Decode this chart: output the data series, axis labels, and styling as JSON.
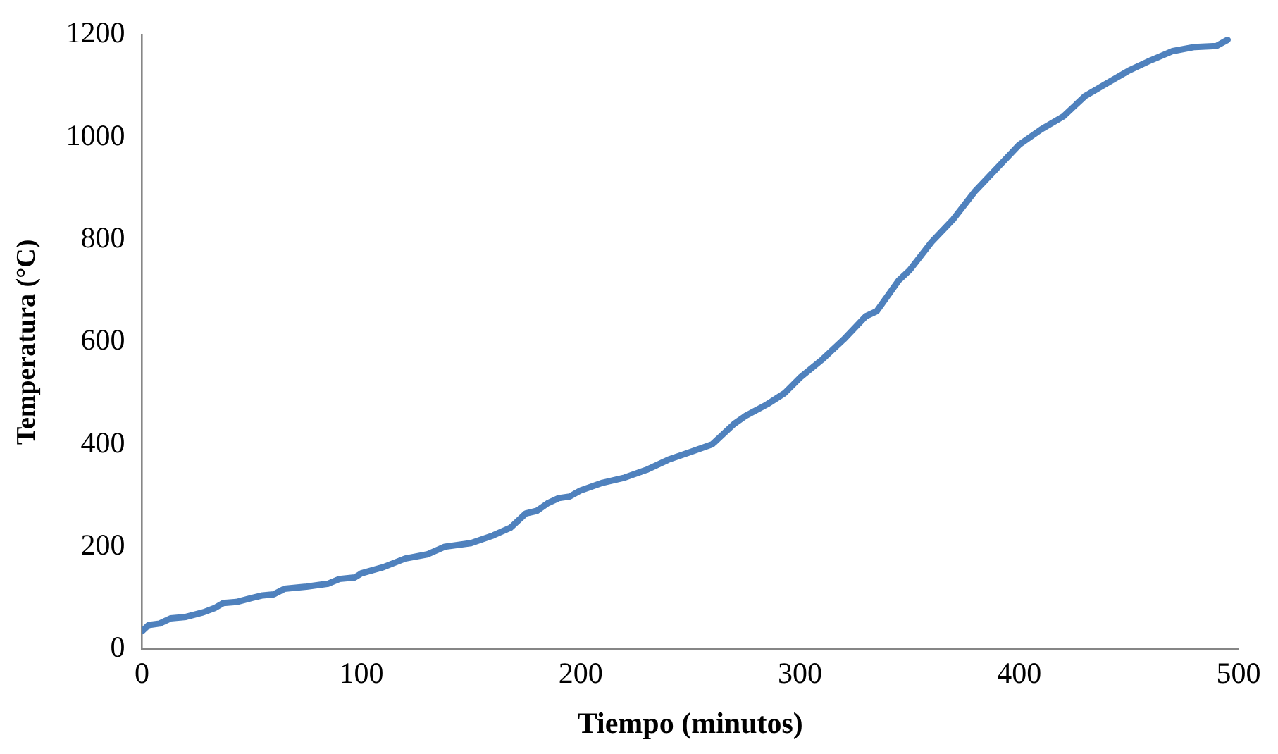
{
  "chart_data": {
    "type": "line",
    "xlabel": "Tiempo (minutos)",
    "ylabel": "Temperatura (°C)",
    "xlim": [
      0,
      500
    ],
    "xticks": [
      0,
      100,
      200,
      300,
      400,
      500
    ],
    "ylim": [
      0,
      1200
    ],
    "yticks": [
      0,
      200,
      400,
      600,
      800,
      1000,
      1200
    ],
    "grid": false,
    "legend": false,
    "marker": "none",
    "line_style": "solid",
    "series": [
      {
        "color": "#4f81bd",
        "x": [
          0,
          3,
          8,
          13,
          20,
          28,
          33,
          37,
          43,
          50,
          55,
          60,
          65,
          75,
          85,
          90,
          97,
          100,
          110,
          120,
          130,
          138,
          150,
          160,
          168,
          175,
          180,
          185,
          190,
          195,
          200,
          210,
          220,
          230,
          240,
          250,
          260,
          265,
          270,
          275,
          285,
          293,
          300,
          310,
          320,
          330,
          335,
          345,
          350,
          360,
          370,
          380,
          390,
          400,
          410,
          420,
          430,
          440,
          450,
          460,
          470,
          480,
          490,
          495
        ],
        "values": [
          35,
          47,
          50,
          60,
          63,
          72,
          80,
          90,
          92,
          100,
          105,
          107,
          118,
          122,
          128,
          137,
          140,
          148,
          160,
          177,
          185,
          200,
          207,
          222,
          237,
          265,
          270,
          285,
          295,
          298,
          310,
          325,
          335,
          350,
          370,
          385,
          400,
          420,
          440,
          455,
          478,
          500,
          530,
          565,
          605,
          650,
          660,
          720,
          740,
          795,
          840,
          895,
          940,
          985,
          1015,
          1040,
          1080,
          1105,
          1130,
          1150,
          1168,
          1176,
          1178,
          1190
        ]
      }
    ]
  }
}
